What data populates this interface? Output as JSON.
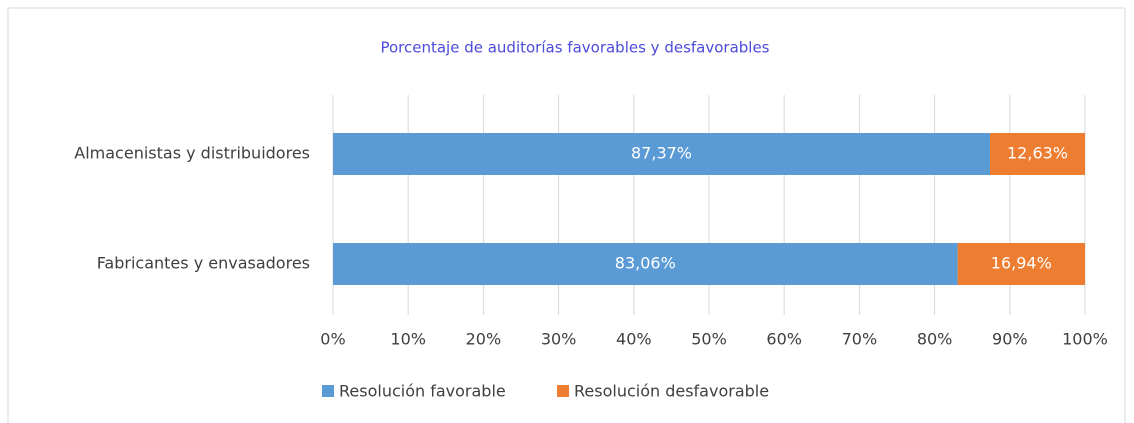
{
  "chart_data": {
    "type": "stacked_barh",
    "title": "Porcentaje de auditorías favorables y desfavorables",
    "categories": [
      "Almacenistas y distribuidores",
      "Fabricantes y envasadores"
    ],
    "series": [
      {
        "name": "Resolución favorable",
        "color": "#5b9bd5",
        "values": [
          87.37,
          83.06
        ],
        "value_labels": [
          "87,37%",
          "83,06%"
        ]
      },
      {
        "name": "Resolución desfavorable",
        "color": "#ed7d31",
        "values": [
          12.63,
          16.94
        ],
        "value_labels": [
          "12,63%",
          "16,94%"
        ]
      }
    ],
    "xlim": [
      0,
      100
    ],
    "xticks": [
      {
        "value": 0,
        "label": "0%"
      },
      {
        "value": 10,
        "label": "10%"
      },
      {
        "value": 20,
        "label": "20%"
      },
      {
        "value": 30,
        "label": "30%"
      },
      {
        "value": 40,
        "label": "40%"
      },
      {
        "value": 50,
        "label": "50%"
      },
      {
        "value": 60,
        "label": "60%"
      },
      {
        "value": 70,
        "label": "70%"
      },
      {
        "value": 80,
        "label": "80%"
      },
      {
        "value": 90,
        "label": "90%"
      },
      {
        "value": 100,
        "label": "100%"
      }
    ],
    "grid": true,
    "legend": "bottom"
  }
}
